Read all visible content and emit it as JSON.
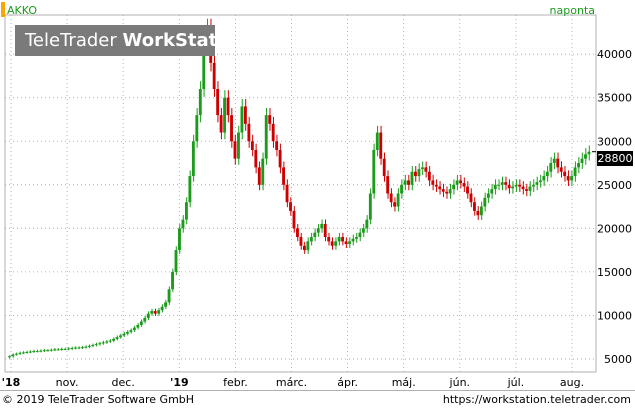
{
  "chart_data": {
    "type": "candlestick",
    "symbol": "AKKO",
    "period": "naponta",
    "last_price": "28800",
    "y_ticks": [
      5000,
      10000,
      15000,
      20000,
      25000,
      30000,
      35000,
      40000
    ],
    "ylim": [
      3500,
      44500
    ],
    "x_ticks": [
      "'18",
      "nov.",
      "dec.",
      "'19",
      "febr.",
      "márc.",
      "ápr.",
      "máj.",
      "jún.",
      "júl.",
      "aug."
    ],
    "close_series": [
      5300,
      5500,
      5600,
      5700,
      5750,
      5800,
      5850,
      5900,
      5900,
      5950,
      6000,
      6000,
      6050,
      6100,
      6100,
      6150,
      6150,
      6200,
      6250,
      6300,
      6300,
      6350,
      6400,
      6500,
      6600,
      6700,
      6800,
      6900,
      7000,
      7100,
      7300,
      7500,
      7700,
      7900,
      8100,
      8300,
      8600,
      8900,
      9300,
      9700,
      10200,
      10500,
      10200,
      10600,
      11000,
      11500,
      13000,
      15000,
      17500,
      20000,
      21000,
      23000,
      26000,
      30000,
      33000,
      36000,
      41000,
      43000,
      39000,
      36000,
      33000,
      31000,
      35000,
      33000,
      30000,
      28000,
      31000,
      34000,
      32000,
      30000,
      29000,
      27000,
      25000,
      28000,
      33000,
      32000,
      30000,
      29000,
      27000,
      25000,
      23000,
      22000,
      20000,
      19000,
      18000,
      17500,
      18500,
      19000,
      19500,
      20000,
      20500,
      19000,
      18500,
      18000,
      18500,
      19000,
      18500,
      18200,
      18500,
      18800,
      19000,
      19500,
      20000,
      21000,
      24000,
      29000,
      31000,
      28000,
      26000,
      24000,
      23000,
      22500,
      24000,
      25000,
      25500,
      25000,
      26500,
      26000,
      26800,
      27000,
      26500,
      25500,
      25000,
      24800,
      24500,
      24200,
      24000,
      24500,
      25000,
      25500,
      25200,
      24800,
      24000,
      23000,
      22000,
      21500,
      22500,
      23500,
      24000,
      24500,
      25000,
      25000,
      25300,
      25000,
      24600,
      24800,
      25000,
      24800,
      24500,
      24300,
      24800,
      25000,
      25300,
      25500,
      26000,
      26500,
      27500,
      28000,
      27000,
      26500,
      26000,
      25500,
      26000,
      27000,
      27500,
      28000,
      28500,
      28800
    ],
    "series": [
      {
        "name": "AKKO",
        "values": "close_series"
      }
    ]
  },
  "header": {
    "brand_regular": "TeleTrader",
    "brand_bold": "WorkStation",
    "symbol": "AKKO",
    "period": "naponta"
  },
  "footer": {
    "copyright": "© 2019 TeleTrader Software GmbH",
    "url": "https://workstation.teletrader.com"
  },
  "colors": {
    "up": "#1a9b1a",
    "down": "#cc0000",
    "grid": "#8aa0c8",
    "axis": "#000000",
    "brand_bg": "#7a7a7a"
  }
}
